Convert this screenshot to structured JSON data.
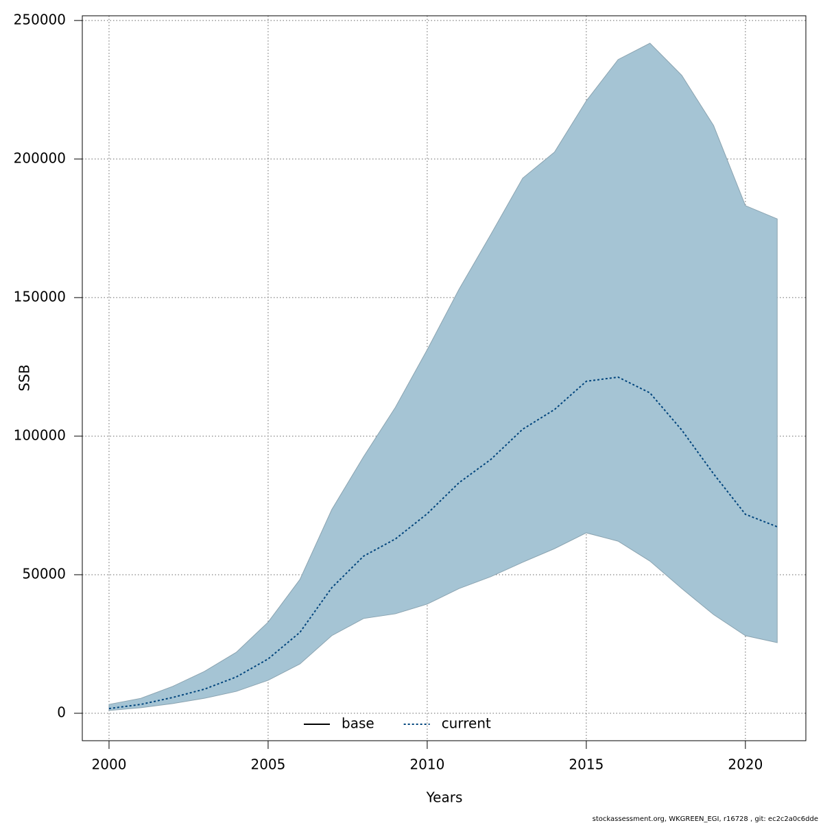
{
  "chart_data": {
    "type": "line",
    "xlabel": "Years",
    "ylabel": "SSB",
    "footnote": "stockassessment.org, WKGREEN_EGI, r16728 , git: ec2c2a0c6dde",
    "x": [
      2000,
      2001,
      2002,
      2003,
      2004,
      2005,
      2006,
      2007,
      2008,
      2009,
      2010,
      2011,
      2012,
      2013,
      2014,
      2015,
      2016,
      2017,
      2018,
      2019,
      2020,
      2021
    ],
    "series": [
      {
        "name": "base",
        "color": "#000000",
        "values": [
          null,
          null,
          null,
          null,
          null,
          null,
          null,
          null,
          null,
          null,
          null,
          null,
          null,
          null,
          null,
          null,
          null,
          null,
          null,
          null,
          null,
          null
        ]
      },
      {
        "name": "current",
        "color": "#00447c",
        "values": [
          1700,
          3200,
          5700,
          8700,
          13100,
          19600,
          29200,
          45300,
          56700,
          62900,
          72000,
          83200,
          91600,
          102500,
          109600,
          119800,
          121300,
          115600,
          102200,
          86400,
          71800,
          67300
        ]
      }
    ],
    "band": {
      "color": "#a5c4d4",
      "lower": [
        1000,
        2000,
        3500,
        5400,
        7900,
        11900,
        17800,
        28000,
        34200,
        35900,
        39400,
        45000,
        49300,
        54500,
        59400,
        65100,
        62100,
        54900,
        45000,
        35600,
        28000,
        25500
      ],
      "upper": [
        3200,
        5400,
        9700,
        15100,
        22000,
        32900,
        48300,
        73500,
        92600,
        110400,
        131200,
        153000,
        172800,
        193100,
        202500,
        221000,
        235900,
        241800,
        230200,
        212100,
        183200,
        178400
      ]
    },
    "xlim": [
      1999.16,
      2021.9
    ],
    "xticks": [
      2000,
      2005,
      2010,
      2015,
      2020
    ],
    "ylim": [
      -9900,
      251700
    ],
    "yticks": [
      0,
      50000,
      100000,
      150000,
      200000,
      250000
    ],
    "grid": true,
    "legend": "bottom"
  }
}
